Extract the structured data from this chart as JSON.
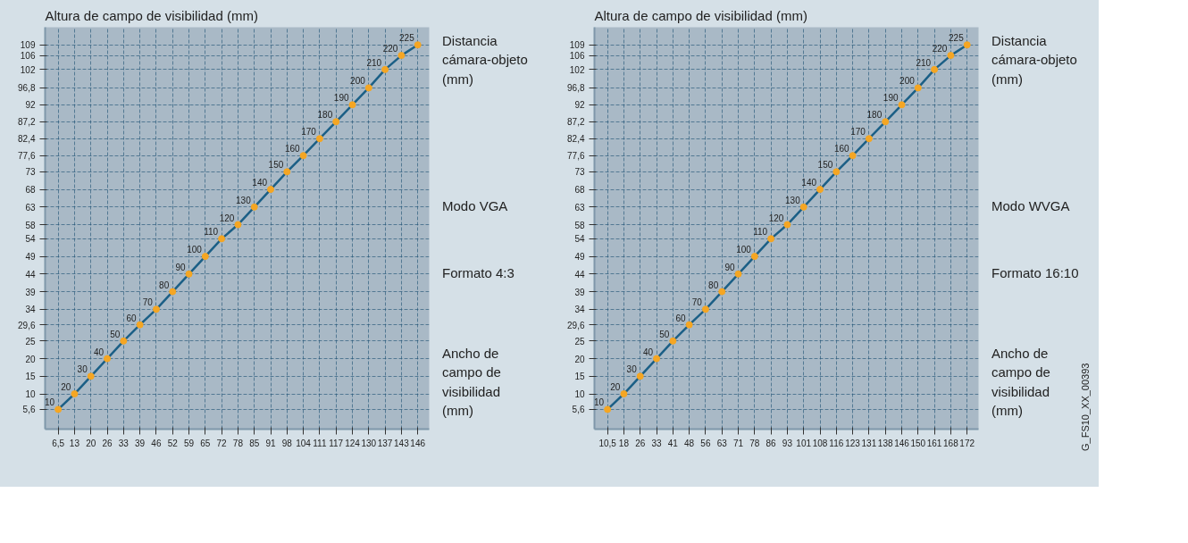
{
  "chart_data": [
    {
      "type": "line",
      "ylabel": "Altura de campo de visibilidad (mm)",
      "xlabel": "Ancho de campo de visibilidad (mm)",
      "categories": [
        "6,5",
        "13",
        "20",
        "26",
        "33",
        "39",
        "46",
        "52",
        "59",
        "65",
        "72",
        "78",
        "85",
        "91",
        "98",
        "104",
        "111",
        "117",
        "124",
        "130",
        "137",
        "143",
        "146"
      ],
      "series": [
        {
          "color": "#1b5f86",
          "values": [
            5.6,
            10,
            15,
            20,
            25,
            29.6,
            34,
            39,
            44,
            49,
            54,
            58,
            63,
            68,
            73,
            77.6,
            82.4,
            87.2,
            92,
            96.8,
            102,
            106,
            109
          ]
        }
      ],
      "ylim": [
        0,
        114
      ],
      "yticks": [
        {
          "value": 5.6,
          "label": "5,6"
        },
        10,
        15,
        20,
        25,
        {
          "value": 29.6,
          "label": "29,6"
        },
        34,
        39,
        44,
        49,
        54,
        58,
        63,
        68,
        73,
        {
          "value": 77.6,
          "label": "77,6"
        },
        {
          "value": 82.4,
          "label": "82,4"
        },
        {
          "value": 87.2,
          "label": "87,2"
        },
        92,
        {
          "value": 96.8,
          "label": "96,8"
        },
        102,
        106,
        109
      ],
      "grid": true,
      "marker": "circle",
      "line_style": "solid",
      "annotations": [
        "Distancia cámara-objeto (mm)",
        "Modo VGA",
        "Formato 4:3",
        {
          "text": "10",
          "x": "6,5",
          "y": 5.6
        },
        {
          "text": "20",
          "x": "13",
          "y": 10
        },
        {
          "text": "30",
          "x": "20",
          "y": 15
        },
        {
          "text": "40",
          "x": "26",
          "y": 20
        },
        {
          "text": "50",
          "x": "33",
          "y": 25
        },
        {
          "text": "60",
          "x": "39",
          "y": 29.6
        },
        {
          "text": "70",
          "x": "46",
          "y": 34
        },
        {
          "text": "80",
          "x": "52",
          "y": 39
        },
        {
          "text": "90",
          "x": "59",
          "y": 44
        },
        {
          "text": "100",
          "x": "65",
          "y": 49
        },
        {
          "text": "110",
          "x": "72",
          "y": 54
        },
        {
          "text": "120",
          "x": "78",
          "y": 58
        },
        {
          "text": "130",
          "x": "85",
          "y": 63
        },
        {
          "text": "140",
          "x": "91",
          "y": 68
        },
        {
          "text": "150",
          "x": "98",
          "y": 73
        },
        {
          "text": "160",
          "x": "104",
          "y": 77.6
        },
        {
          "text": "170",
          "x": "111",
          "y": 82.4
        },
        {
          "text": "180",
          "x": "117",
          "y": 87.2
        },
        {
          "text": "190",
          "x": "124",
          "y": 92
        },
        {
          "text": "200",
          "x": "130",
          "y": 96.8
        },
        {
          "text": "210",
          "x": "137",
          "y": 102
        },
        {
          "text": "220",
          "x": "143",
          "y": 106
        },
        {
          "text": "225",
          "x": "146",
          "y": 109
        }
      ]
    },
    {
      "type": "line",
      "ylabel": "Altura de campo de visibilidad (mm)",
      "xlabel": "Ancho de campo de visibilidad (mm)",
      "categories": [
        "10,5",
        "18",
        "26",
        "33",
        "41",
        "48",
        "56",
        "63",
        "71",
        "78",
        "86",
        "93",
        "101",
        "108",
        "116",
        "123",
        "131",
        "138",
        "146",
        "150",
        "161",
        "168",
        "172"
      ],
      "series": [
        {
          "color": "#1b5f86",
          "values": [
            5.6,
            10,
            15,
            20,
            25,
            29.6,
            34,
            39,
            44,
            49,
            54,
            58,
            63,
            68,
            73,
            77.6,
            82.4,
            87.2,
            92,
            96.8,
            102,
            106,
            109
          ]
        }
      ],
      "ylim": [
        0,
        114
      ],
      "yticks": [
        {
          "value": 5.6,
          "label": "5,6"
        },
        10,
        15,
        20,
        25,
        {
          "value": 29.6,
          "label": "29,6"
        },
        34,
        39,
        44,
        49,
        54,
        58,
        63,
        68,
        73,
        {
          "value": 77.6,
          "label": "77,6"
        },
        {
          "value": 82.4,
          "label": "82,4"
        },
        {
          "value": 87.2,
          "label": "87,2"
        },
        92,
        {
          "value": 96.8,
          "label": "96,8"
        },
        102,
        106,
        109
      ],
      "grid": true,
      "marker": "circle",
      "line_style": "solid",
      "annotations": [
        "Distancia cámara-objeto (mm)",
        "Modo WVGA",
        "Formato 16:10",
        "G_FS10_XX_00393",
        {
          "text": "10",
          "x": "10,5",
          "y": 5.6
        },
        {
          "text": "20",
          "x": "18",
          "y": 10
        },
        {
          "text": "30",
          "x": "26",
          "y": 15
        },
        {
          "text": "40",
          "x": "33",
          "y": 20
        },
        {
          "text": "50",
          "x": "41",
          "y": 25
        },
        {
          "text": "60",
          "x": "48",
          "y": 29.6
        },
        {
          "text": "70",
          "x": "56",
          "y": 34
        },
        {
          "text": "80",
          "x": "63",
          "y": 39
        },
        {
          "text": "90",
          "x": "71",
          "y": 44
        },
        {
          "text": "100",
          "x": "78",
          "y": 49
        },
        {
          "text": "110",
          "x": "86",
          "y": 54
        },
        {
          "text": "120",
          "x": "93",
          "y": 58
        },
        {
          "text": "130",
          "x": "101",
          "y": 63
        },
        {
          "text": "140",
          "x": "108",
          "y": 68
        },
        {
          "text": "150",
          "x": "116",
          "y": 73
        },
        {
          "text": "160",
          "x": "123",
          "y": 77.6
        },
        {
          "text": "170",
          "x": "131",
          "y": 82.4
        },
        {
          "text": "180",
          "x": "138",
          "y": 87.2
        },
        {
          "text": "190",
          "x": "146",
          "y": 92
        },
        {
          "text": "200",
          "x": "150",
          "y": 96.8
        },
        {
          "text": "210",
          "x": "161",
          "y": 102
        },
        {
          "text": "220",
          "x": "168",
          "y": 106
        },
        {
          "text": "225",
          "x": "172",
          "y": 109
        }
      ]
    }
  ]
}
